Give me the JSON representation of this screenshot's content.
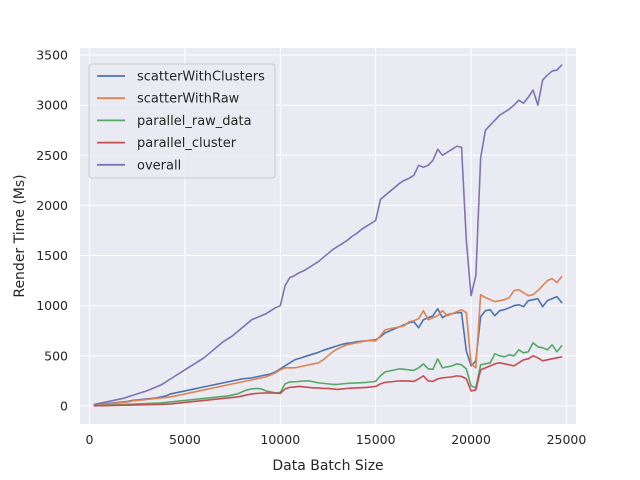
{
  "chart_data": {
    "type": "line",
    "title": "",
    "xlabel": "Data Batch Size",
    "ylabel": "Render Time (Ms)",
    "xlim": [
      -500,
      25500
    ],
    "ylim": [
      -180,
      3570
    ],
    "xticks": [
      0,
      5000,
      10000,
      15000,
      20000,
      25000
    ],
    "yticks": [
      0,
      500,
      1000,
      1500,
      2000,
      2500,
      3000,
      3500
    ],
    "grid": true,
    "legend_position": "top-left",
    "x": [
      250,
      500,
      750,
      1000,
      1250,
      1500,
      1750,
      2000,
      2250,
      2500,
      2750,
      3000,
      3250,
      3500,
      3750,
      4000,
      4250,
      4500,
      4750,
      5000,
      5250,
      5500,
      5750,
      6000,
      6250,
      6500,
      6750,
      7000,
      7250,
      7500,
      7750,
      8000,
      8250,
      8500,
      8750,
      9000,
      9250,
      9500,
      9750,
      10000,
      10250,
      10500,
      10750,
      11000,
      11250,
      11500,
      11750,
      12000,
      12250,
      12500,
      12750,
      13000,
      13250,
      13500,
      13750,
      14000,
      14250,
      14500,
      14750,
      15000,
      15250,
      15500,
      15750,
      16000,
      16250,
      16500,
      16750,
      17000,
      17250,
      17500,
      17750,
      18000,
      18250,
      18500,
      18750,
      19000,
      19250,
      19500,
      19750,
      20000,
      20250,
      20500,
      20750,
      21000,
      21250,
      21500,
      21750,
      22000,
      22250,
      22500,
      22750,
      23000,
      23250,
      23500,
      23750,
      24000,
      24250,
      24500,
      24750
    ],
    "series": [
      {
        "name": "scatterWithClusters",
        "color": "#4c72b0",
        "values": [
          10,
          15,
          20,
          25,
          30,
          35,
          40,
          45,
          55,
          60,
          65,
          70,
          75,
          80,
          90,
          100,
          120,
          130,
          140,
          150,
          160,
          170,
          180,
          190,
          200,
          210,
          220,
          230,
          240,
          250,
          260,
          270,
          275,
          280,
          290,
          300,
          310,
          320,
          340,
          370,
          400,
          430,
          460,
          475,
          490,
          505,
          520,
          535,
          555,
          570,
          585,
          600,
          615,
          625,
          630,
          640,
          645,
          650,
          655,
          660,
          690,
          730,
          750,
          770,
          790,
          810,
          830,
          840,
          780,
          860,
          880,
          900,
          970,
          880,
          910,
          920,
          930,
          930,
          550,
          400,
          450,
          890,
          950,
          960,
          900,
          950,
          960,
          980,
          1000,
          1010,
          990,
          1050,
          1060,
          1070,
          990,
          1050,
          1070,
          1090,
          1030
        ]
      },
      {
        "name": "scatterWithRaw",
        "color": "#dd8452",
        "values": [
          5,
          10,
          15,
          20,
          25,
          30,
          35,
          40,
          50,
          55,
          60,
          65,
          70,
          75,
          80,
          85,
          90,
          100,
          110,
          120,
          130,
          140,
          150,
          160,
          170,
          180,
          190,
          200,
          210,
          220,
          230,
          240,
          250,
          260,
          270,
          280,
          290,
          310,
          330,
          360,
          380,
          380,
          380,
          390,
          400,
          410,
          420,
          430,
          460,
          500,
          540,
          570,
          590,
          610,
          620,
          630,
          640,
          650,
          650,
          650,
          700,
          760,
          770,
          780,
          790,
          800,
          840,
          850,
          870,
          950,
          860,
          880,
          900,
          950,
          900,
          920,
          940,
          960,
          930,
          420,
          380,
          1110,
          1080,
          1060,
          1040,
          1050,
          1060,
          1080,
          1150,
          1160,
          1130,
          1100,
          1110,
          1150,
          1200,
          1250,
          1270,
          1230,
          1290
        ]
      },
      {
        "name": "parallel_raw_data",
        "color": "#55a868",
        "values": [
          2,
          4,
          6,
          8,
          10,
          12,
          14,
          16,
          18,
          20,
          22,
          24,
          26,
          28,
          30,
          35,
          40,
          45,
          50,
          55,
          60,
          65,
          70,
          75,
          80,
          85,
          90,
          95,
          100,
          110,
          120,
          140,
          160,
          170,
          175,
          170,
          150,
          140,
          130,
          135,
          220,
          240,
          240,
          245,
          250,
          250,
          240,
          230,
          225,
          220,
          215,
          215,
          220,
          225,
          228,
          230,
          232,
          235,
          240,
          245,
          300,
          340,
          350,
          360,
          370,
          365,
          360,
          355,
          380,
          420,
          370,
          365,
          470,
          380,
          390,
          400,
          420,
          410,
          370,
          200,
          180,
          410,
          420,
          430,
          520,
          500,
          490,
          510,
          500,
          560,
          530,
          540,
          630,
          590,
          580,
          560,
          610,
          540,
          600
        ]
      },
      {
        "name": "parallel_cluster",
        "color": "#c44e52",
        "values": [
          1,
          2,
          3,
          4,
          5,
          6,
          7,
          8,
          9,
          10,
          11,
          12,
          13,
          14,
          15,
          18,
          20,
          25,
          30,
          35,
          40,
          45,
          50,
          55,
          60,
          65,
          70,
          75,
          80,
          85,
          90,
          100,
          110,
          120,
          125,
          128,
          130,
          130,
          128,
          125,
          170,
          185,
          190,
          195,
          190,
          185,
          180,
          180,
          175,
          175,
          170,
          165,
          170,
          175,
          178,
          180,
          182,
          185,
          190,
          195,
          220,
          235,
          240,
          245,
          250,
          250,
          248,
          245,
          270,
          300,
          250,
          245,
          270,
          280,
          285,
          290,
          300,
          295,
          270,
          150,
          160,
          360,
          380,
          400,
          420,
          430,
          420,
          410,
          400,
          430,
          460,
          470,
          500,
          480,
          450,
          460,
          470,
          480,
          490
        ]
      },
      {
        "name": "overall",
        "color": "#8172b3",
        "values": [
          15,
          25,
          35,
          45,
          55,
          65,
          75,
          90,
          105,
          120,
          135,
          150,
          170,
          190,
          210,
          240,
          270,
          300,
          330,
          360,
          390,
          420,
          450,
          480,
          520,
          560,
          600,
          640,
          670,
          700,
          740,
          780,
          820,
          860,
          880,
          900,
          920,
          950,
          980,
          1000,
          1200,
          1280,
          1300,
          1330,
          1350,
          1380,
          1410,
          1440,
          1480,
          1520,
          1560,
          1590,
          1620,
          1650,
          1690,
          1720,
          1760,
          1790,
          1820,
          1850,
          2060,
          2100,
          2140,
          2180,
          2220,
          2250,
          2270,
          2300,
          2400,
          2380,
          2400,
          2450,
          2560,
          2500,
          2530,
          2560,
          2590,
          2580,
          1650,
          1100,
          1300,
          2470,
          2750,
          2800,
          2850,
          2900,
          2930,
          2960,
          3000,
          3050,
          3020,
          3080,
          3150,
          3000,
          3250,
          3300,
          3340,
          3350,
          3400
        ]
      }
    ]
  }
}
